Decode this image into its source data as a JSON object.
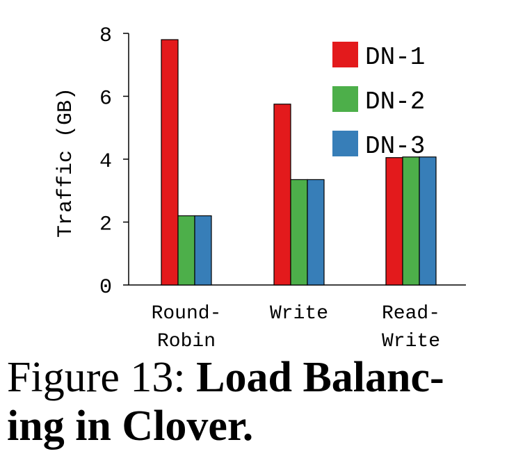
{
  "chart_data": {
    "type": "bar",
    "ylabel": "Traffic (GB)",
    "ylim": [
      0,
      8
    ],
    "yticks": [
      0,
      2,
      4,
      6,
      8
    ],
    "categories": [
      [
        "Round-",
        "Robin"
      ],
      [
        "Write"
      ],
      [
        "Read-",
        "Write"
      ]
    ],
    "series": [
      {
        "name": "DN-1",
        "color": "#e31a1c",
        "values": [
          7.8,
          5.75,
          4.05
        ]
      },
      {
        "name": "DN-2",
        "color": "#4daf4a",
        "values": [
          2.2,
          3.35,
          4.07
        ]
      },
      {
        "name": "DN-3",
        "color": "#377eb8",
        "values": [
          2.2,
          3.35,
          4.07
        ]
      }
    ],
    "legend_position": "top-right",
    "grid": false
  },
  "caption": {
    "prefix": "Figure 13: ",
    "title_part1": "Load Balanc-",
    "title_part2": "ing in Clover."
  }
}
